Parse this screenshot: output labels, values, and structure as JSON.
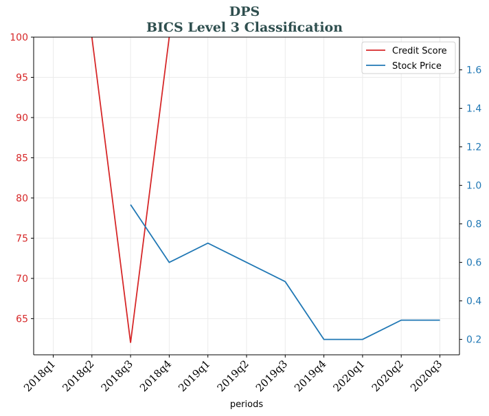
{
  "chart_data": {
    "type": "line",
    "title": "DPS",
    "subtitle": "BICS Level 3 Classification",
    "xlabel": "periods",
    "categories": [
      "2018q1",
      "2018q2",
      "2018q3",
      "2018q4",
      "2019q1",
      "2019q2",
      "2019q3",
      "2019q4",
      "2020q1",
      "2020q2",
      "2020q3"
    ],
    "left_axis": {
      "ylim": [
        60.5,
        100
      ],
      "ticks": [
        65,
        70,
        75,
        80,
        85,
        90,
        95,
        100
      ],
      "color": "#d62728"
    },
    "right_axis": {
      "ylim": [
        0.12,
        1.77
      ],
      "ticks": [
        "0.2",
        "0.4",
        "0.6",
        "0.8",
        "1.0",
        "1.2",
        "1.4",
        "1.6"
      ],
      "color": "#1f77b4"
    },
    "series": [
      {
        "name": "Credit Score",
        "axis": "left",
        "color": "#d62728",
        "values": [
          null,
          100,
          62,
          100,
          null,
          null,
          null,
          null,
          null,
          null,
          null
        ],
        "extend_past_top": [
          130,
          null,
          130
        ]
      },
      {
        "name": "Stock Price",
        "axis": "right",
        "color": "#1f77b4",
        "values": [
          null,
          null,
          0.9,
          0.6,
          0.7,
          0.6,
          0.5,
          0.2,
          0.2,
          0.3,
          0.3
        ]
      }
    ],
    "grid": true,
    "legend_position": "top-right"
  }
}
